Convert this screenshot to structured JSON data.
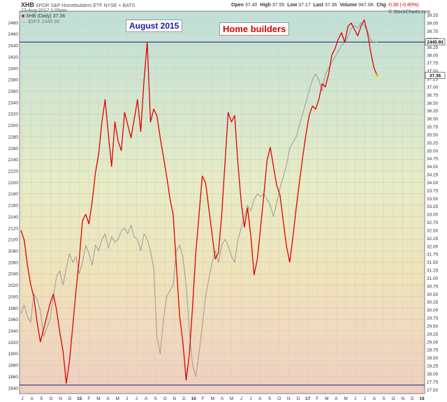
{
  "header": {
    "symbol": "XHB",
    "name": "SPDR S&P Homebuilders ETF  NYSE + BATS",
    "date": "23-Aug-2017 1:06pm",
    "open_label": "Open",
    "open": "37.40",
    "high_label": "High",
    "high": "37.55",
    "low_label": "Low",
    "low": "37.17",
    "last_label": "Last",
    "last": "37.36",
    "volume_label": "Volume",
    "volume": "947.0K",
    "chg_label": "Chg",
    "chg": "-0.30 (-0.80%)",
    "watermark": "© StockCharts.com",
    "legend_main": "XHB (Daily) 37.36",
    "legend_comp": "$SPX 2445.93"
  },
  "annotations": {
    "august": "August 2015",
    "home": "Home builders"
  },
  "chart_data": {
    "type": "line",
    "colors": {
      "xhb": "#e00000",
      "spx": "#9a9a9a",
      "hline": "#1a1a7a",
      "last_marker": "#e8c400"
    },
    "x_labels": [
      "J",
      "A",
      "S",
      "O",
      "N",
      "D",
      "15",
      "F",
      "M",
      "A",
      "M",
      "J",
      "J",
      "A",
      "S",
      "O",
      "N",
      "D",
      "16",
      "F",
      "M",
      "A",
      "M",
      "J",
      "J",
      "A",
      "S",
      "O",
      "N",
      "D",
      "17",
      "F",
      "M",
      "A",
      "M",
      "J",
      "J",
      "A",
      "S",
      "O",
      "N",
      "D",
      "18"
    ],
    "left_axis": {
      "name": "$SPX",
      "min": 1830,
      "max": 2500,
      "ticks": [
        1840,
        1860,
        1880,
        1900,
        1920,
        1940,
        1960,
        1980,
        2000,
        2020,
        2040,
        2060,
        2080,
        2100,
        2120,
        2140,
        2160,
        2180,
        2200,
        2220,
        2240,
        2260,
        2280,
        2300,
        2320,
        2340,
        2360,
        2380,
        2400,
        2420,
        2440,
        2460,
        2480
      ]
    },
    "right_axis": {
      "name": "XHB",
      "min": 27.375,
      "max": 39.375,
      "ticks": [
        "27.50",
        "27.75",
        "28.00",
        "28.25",
        "28.50",
        "28.75",
        "29.00",
        "29.25",
        "29.50",
        "29.75",
        "30.00",
        "30.25",
        "30.50",
        "30.75",
        "31.00",
        "31.25",
        "31.50",
        "31.75",
        "32.00",
        "32.25",
        "32.50",
        "32.75",
        "33.00",
        "33.25",
        "33.50",
        "33.75",
        "34.00",
        "34.25",
        "34.50",
        "34.75",
        "35.00",
        "35.25",
        "35.50",
        "35.75",
        "36.00",
        "36.25",
        "36.50",
        "36.75",
        "37.00",
        "37.25",
        "37.50",
        "37.75",
        "38.00",
        "38.25",
        "38.50",
        "38.75",
        "39.00",
        "39.25"
      ]
    },
    "right_axis_tags": [
      {
        "label": "2445.93",
        "axis": "left",
        "value": 2445.93
      },
      {
        "label": "37.36",
        "axis": "right",
        "value": 37.36
      }
    ],
    "hlines": [
      {
        "axis": "left",
        "value": 2445.93
      },
      {
        "axis": "left",
        "value": 1845
      }
    ],
    "series": [
      {
        "name": "XHB",
        "axis": "right",
        "points": [
          [
            0,
            32.5
          ],
          [
            1,
            32.2
          ],
          [
            2,
            31.4
          ],
          [
            3,
            30.8
          ],
          [
            4,
            30.4
          ],
          [
            5,
            29.6
          ],
          [
            6,
            29.0
          ],
          [
            7,
            29.4
          ],
          [
            8,
            29.8
          ],
          [
            9,
            30.2
          ],
          [
            10,
            30.5
          ],
          [
            11,
            30.0
          ],
          [
            12,
            29.3
          ],
          [
            13,
            28.7
          ],
          [
            14,
            27.7
          ],
          [
            15,
            28.4
          ],
          [
            16,
            29.5
          ],
          [
            17,
            30.6
          ],
          [
            18,
            31.6
          ],
          [
            19,
            32.8
          ],
          [
            20,
            33.0
          ],
          [
            21,
            32.7
          ],
          [
            22,
            33.4
          ],
          [
            23,
            34.3
          ],
          [
            24,
            34.9
          ],
          [
            25,
            35.9
          ],
          [
            26,
            36.6
          ],
          [
            27,
            35.5
          ],
          [
            28,
            34.5
          ],
          [
            29,
            35.9
          ],
          [
            30,
            35.3
          ],
          [
            31,
            35.0
          ],
          [
            32,
            36.2
          ],
          [
            33,
            35.8
          ],
          [
            34,
            35.4
          ],
          [
            35,
            36.0
          ],
          [
            36,
            36.6
          ],
          [
            37,
            35.6
          ],
          [
            38,
            37.2
          ],
          [
            39,
            38.4
          ],
          [
            40,
            35.9
          ],
          [
            41,
            36.3
          ],
          [
            42,
            36.1
          ],
          [
            43,
            35.4
          ],
          [
            44,
            34.8
          ],
          [
            45,
            34.2
          ],
          [
            46,
            33.5
          ],
          [
            47,
            33.0
          ],
          [
            48,
            31.4
          ],
          [
            49,
            29.8
          ],
          [
            50,
            29.0
          ],
          [
            51,
            27.8
          ],
          [
            52,
            28.6
          ],
          [
            53,
            30.1
          ],
          [
            54,
            31.8
          ],
          [
            55,
            33.0
          ],
          [
            56,
            34.2
          ],
          [
            57,
            34.0
          ],
          [
            58,
            33.2
          ],
          [
            59,
            32.4
          ],
          [
            60,
            31.6
          ],
          [
            61,
            31.8
          ],
          [
            62,
            33.0
          ],
          [
            63,
            34.6
          ],
          [
            64,
            36.2
          ],
          [
            65,
            35.9
          ],
          [
            66,
            36.1
          ],
          [
            67,
            34.6
          ],
          [
            68,
            33.4
          ],
          [
            69,
            32.6
          ],
          [
            70,
            33.2
          ],
          [
            71,
            32.3
          ],
          [
            72,
            31.1
          ],
          [
            73,
            31.6
          ],
          [
            74,
            32.6
          ],
          [
            75,
            33.6
          ],
          [
            76,
            34.7
          ],
          [
            77,
            35.1
          ],
          [
            78,
            34.5
          ],
          [
            79,
            33.9
          ],
          [
            80,
            33.6
          ],
          [
            81,
            32.8
          ],
          [
            82,
            32.0
          ],
          [
            83,
            31.5
          ],
          [
            84,
            32.3
          ],
          [
            85,
            33.2
          ],
          [
            86,
            34.0
          ],
          [
            87,
            34.8
          ],
          [
            88,
            35.5
          ],
          [
            89,
            36.1
          ],
          [
            90,
            36.4
          ],
          [
            91,
            36.3
          ],
          [
            92,
            36.6
          ],
          [
            93,
            37.1
          ],
          [
            94,
            37.0
          ],
          [
            95,
            37.4
          ],
          [
            96,
            38.0
          ],
          [
            97,
            38.2
          ],
          [
            98,
            38.5
          ],
          [
            99,
            38.7
          ],
          [
            100,
            38.4
          ],
          [
            101,
            38.9
          ],
          [
            102,
            39.0
          ],
          [
            103,
            38.8
          ],
          [
            104,
            38.6
          ],
          [
            105,
            38.9
          ],
          [
            106,
            39.1
          ],
          [
            107,
            38.7
          ],
          [
            108,
            38.1
          ],
          [
            109,
            37.6
          ],
          [
            110,
            37.36
          ]
        ]
      },
      {
        "name": "$SPX",
        "axis": "left",
        "points": [
          [
            0,
            1970
          ],
          [
            1,
            1985
          ],
          [
            2,
            1965
          ],
          [
            3,
            1955
          ],
          [
            4,
            2005
          ],
          [
            5,
            1995
          ],
          [
            6,
            1975
          ],
          [
            7,
            1930
          ],
          [
            8,
            1945
          ],
          [
            9,
            1960
          ],
          [
            10,
            2000
          ],
          [
            11,
            2035
          ],
          [
            12,
            2045
          ],
          [
            13,
            2020
          ],
          [
            14,
            2050
          ],
          [
            15,
            2075
          ],
          [
            16,
            2060
          ],
          [
            17,
            2070
          ],
          [
            18,
            2040
          ],
          [
            19,
            2060
          ],
          [
            20,
            2090
          ],
          [
            21,
            2075
          ],
          [
            22,
            2055
          ],
          [
            23,
            2090
          ],
          [
            24,
            2080
          ],
          [
            25,
            2100
          ],
          [
            26,
            2110
          ],
          [
            27,
            2085
          ],
          [
            28,
            2105
          ],
          [
            29,
            2095
          ],
          [
            30,
            2100
          ],
          [
            31,
            2115
          ],
          [
            32,
            2120
          ],
          [
            33,
            2110
          ],
          [
            34,
            2125
          ],
          [
            35,
            2105
          ],
          [
            36,
            2100
          ],
          [
            37,
            2080
          ],
          [
            38,
            2110
          ],
          [
            39,
            2100
          ],
          [
            40,
            2080
          ],
          [
            41,
            2050
          ],
          [
            42,
            1930
          ],
          [
            43,
            1900
          ],
          [
            44,
            1960
          ],
          [
            45,
            2000
          ],
          [
            46,
            2010
          ],
          [
            47,
            2020
          ],
          [
            48,
            2080
          ],
          [
            49,
            2090
          ],
          [
            50,
            2070
          ],
          [
            51,
            2020
          ],
          [
            52,
            1940
          ],
          [
            53,
            1880
          ],
          [
            54,
            1860
          ],
          [
            55,
            1900
          ],
          [
            56,
            1950
          ],
          [
            57,
            2000
          ],
          [
            58,
            2030
          ],
          [
            59,
            2060
          ],
          [
            60,
            2080
          ],
          [
            61,
            2060
          ],
          [
            62,
            2090
          ],
          [
            63,
            2100
          ],
          [
            64,
            2090
          ],
          [
            65,
            2070
          ],
          [
            66,
            2060
          ],
          [
            67,
            2100
          ],
          [
            68,
            2120
          ],
          [
            69,
            2140
          ],
          [
            70,
            2160
          ],
          [
            71,
            2150
          ],
          [
            72,
            2170
          ],
          [
            73,
            2180
          ],
          [
            74,
            2175
          ],
          [
            75,
            2180
          ],
          [
            76,
            2170
          ],
          [
            77,
            2160
          ],
          [
            78,
            2140
          ],
          [
            79,
            2165
          ],
          [
            80,
            2190
          ],
          [
            81,
            2210
          ],
          [
            82,
            2230
          ],
          [
            83,
            2260
          ],
          [
            84,
            2270
          ],
          [
            85,
            2280
          ],
          [
            86,
            2300
          ],
          [
            87,
            2320
          ],
          [
            88,
            2340
          ],
          [
            89,
            2360
          ],
          [
            90,
            2380
          ],
          [
            91,
            2390
          ],
          [
            92,
            2380
          ],
          [
            93,
            2360
          ],
          [
            94,
            2390
          ],
          [
            95,
            2400
          ],
          [
            96,
            2410
          ],
          [
            97,
            2420
          ],
          [
            98,
            2430
          ],
          [
            99,
            2440
          ],
          [
            100,
            2445
          ],
          [
            101,
            2455
          ],
          [
            102,
            2470
          ],
          [
            103,
            2475
          ],
          [
            104,
            2470
          ],
          [
            105,
            2480
          ],
          [
            106,
            2475
          ],
          [
            107,
            2465
          ],
          [
            108,
            2450
          ],
          [
            109,
            2445
          ],
          [
            110,
            2445.93
          ]
        ]
      }
    ]
  }
}
